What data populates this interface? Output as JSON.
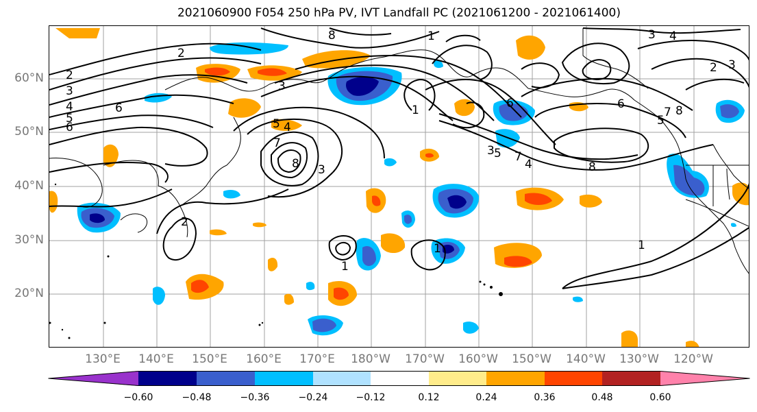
{
  "title": "2021060900 F054 250 hPa PV, IVT Landfall PC (2021061200 - 2021061400)",
  "lat_labels": [
    "60°N",
    "50°N",
    "40°N",
    "30°N",
    "20°N"
  ],
  "lon_labels": [
    "130°E",
    "140°E",
    "150°E",
    "160°E",
    "170°E",
    "180°W",
    "170°W",
    "160°W",
    "150°W",
    "140°W",
    "130°W",
    "120°W"
  ],
  "colorbar": {
    "tick_labels": [
      "−0.60",
      "−0.48",
      "−0.36",
      "−0.24",
      "−0.12",
      "0.12",
      "0.24",
      "0.36",
      "0.48",
      "0.60"
    ],
    "colors": [
      "#9932cc",
      "#00008b",
      "#3a5fcd",
      "#00bfff",
      "#b0e2ff",
      "#ffffff",
      "#ffec8b",
      "#ffa500",
      "#ff4500",
      "#b22222",
      "#ff82ab"
    ]
  },
  "contour_labels": [
    "2",
    "3",
    "4",
    "5",
    "6",
    "2",
    "3",
    "8",
    "7",
    "6",
    "8",
    "5",
    "4",
    "3",
    "1",
    "1",
    "1",
    "8",
    "7",
    "6",
    "5",
    "4",
    "3",
    "8",
    "7",
    "6",
    "5",
    "4",
    "3",
    "3",
    "2",
    "1",
    "1",
    "2"
  ],
  "colors": {
    "contour": "#000000",
    "grid": "#a0a0a0",
    "coast": "#000000"
  }
}
